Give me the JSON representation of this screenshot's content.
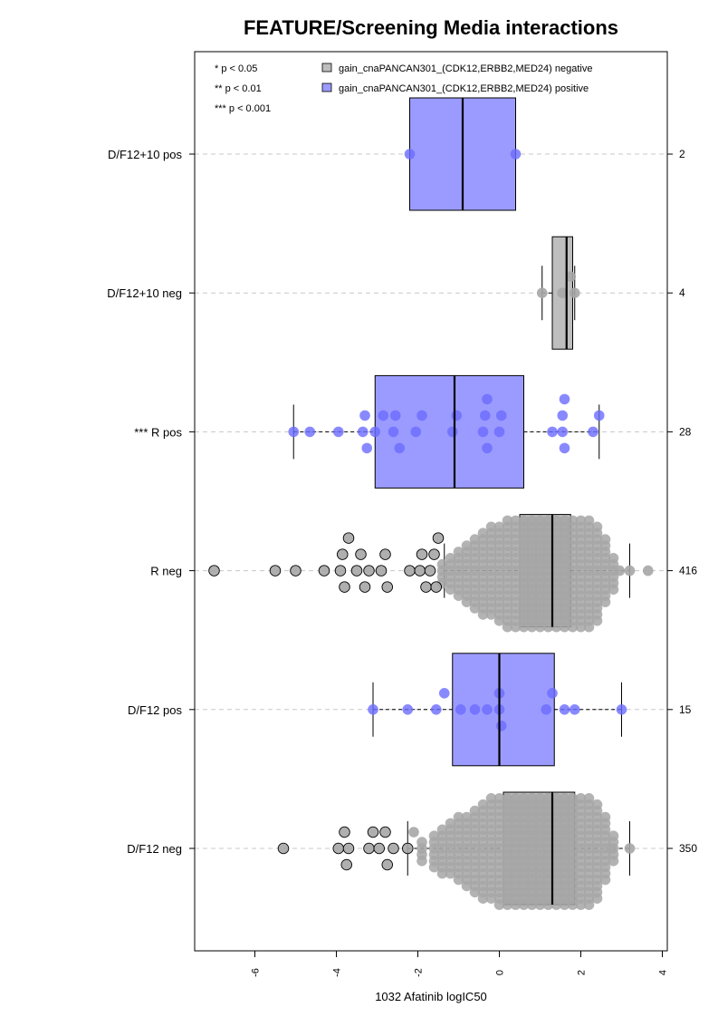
{
  "chart_data": {
    "type": "box",
    "orientation": "horizontal",
    "title": "FEATURE/Screening Media interactions",
    "xlabel": "1032 Afatinib logIC50",
    "xlim": [
      -7.2,
      4.1
    ],
    "xticks": [
      "-6",
      "-4",
      "-2",
      "0",
      "2",
      "4"
    ],
    "grid": "dashed horizontal lines at each group",
    "legend": {
      "placement": "top",
      "significance": [
        "* p < 0.05",
        "** p < 0.01",
        "*** p < 0.001"
      ],
      "entries": [
        {
          "label": "gain_cnaPANCAN301_(CDK12,ERBB2,MED24) negative",
          "color": "#bebebe"
        },
        {
          "label": "gain_cnaPANCAN301_(CDK12,ERBB2,MED24) positive",
          "color": "#9b9bff"
        }
      ]
    },
    "colors": {
      "negative_box": "#bebebe",
      "positive_box": "#9b9bff",
      "negative_point": "#a6a6a6",
      "positive_point": "#6b6bff"
    },
    "groups": [
      {
        "label": "D/F12+10 pos",
        "n": "2",
        "status": "positive",
        "box": {
          "q1": -2.2,
          "median": -0.9,
          "q3": 0.4
        },
        "whiskers": [
          -2.2,
          0.4
        ],
        "points": [
          -2.2,
          0.4
        ]
      },
      {
        "label": "D/F12+10 neg",
        "n": "4",
        "status": "negative",
        "box": {
          "q1": 1.3,
          "median": 1.65,
          "q3": 1.8
        },
        "whiskers": [
          1.05,
          1.85
        ],
        "points": [
          1.05,
          1.55,
          1.75,
          1.85
        ]
      },
      {
        "label": "*** R pos",
        "n": "28",
        "status": "positive",
        "box": {
          "q1": -3.05,
          "median": -1.1,
          "q3": 0.6
        },
        "whiskers": [
          -5.05,
          2.45
        ],
        "points": [
          -5.05,
          -4.65,
          -3.95,
          -3.35,
          -3.3,
          -3.25,
          -3.05,
          -2.85,
          -2.6,
          -2.55,
          -2.45,
          -2.05,
          -1.9,
          -1.15,
          -1.05,
          -0.4,
          -0.35,
          -0.3,
          -0.3,
          0.0,
          0.05,
          1.3,
          1.55,
          1.55,
          1.6,
          1.6,
          2.3,
          2.45
        ]
      },
      {
        "label": "R neg",
        "n": "416",
        "status": "negative",
        "box": {
          "q1": 0.5,
          "median": 1.3,
          "q3": 1.75
        },
        "whiskers": [
          -1.35,
          3.2
        ],
        "outliers": [
          -7.0,
          -5.5,
          -5.0,
          -4.3,
          -3.9,
          -3.85,
          -3.8,
          -3.7,
          -3.5,
          -3.4,
          -3.3,
          -3.2,
          -2.9,
          -2.8,
          -2.75,
          -2.2,
          -1.95,
          -1.9,
          -1.8,
          -1.7,
          -1.6,
          -1.55,
          -1.5,
          2.95,
          3.2,
          3.65
        ],
        "density": [
          {
            "x": -1.4,
            "n": 4
          },
          {
            "x": -1.2,
            "n": 6
          },
          {
            "x": -1.0,
            "n": 8
          },
          {
            "x": -0.8,
            "n": 10
          },
          {
            "x": -0.6,
            "n": 12
          },
          {
            "x": -0.4,
            "n": 14
          },
          {
            "x": -0.2,
            "n": 15
          },
          {
            "x": 0.0,
            "n": 16
          },
          {
            "x": 0.2,
            "n": 18
          },
          {
            "x": 0.4,
            "n": 18
          },
          {
            "x": 0.6,
            "n": 18
          },
          {
            "x": 0.8,
            "n": 18
          },
          {
            "x": 1.0,
            "n": 18
          },
          {
            "x": 1.2,
            "n": 18
          },
          {
            "x": 1.4,
            "n": 18
          },
          {
            "x": 1.6,
            "n": 18
          },
          {
            "x": 1.8,
            "n": 18
          },
          {
            "x": 2.0,
            "n": 18
          },
          {
            "x": 2.2,
            "n": 18
          },
          {
            "x": 2.4,
            "n": 16
          },
          {
            "x": 2.6,
            "n": 11
          },
          {
            "x": 2.8,
            "n": 6
          }
        ]
      },
      {
        "label": "D/F12 pos",
        "n": "15",
        "status": "positive",
        "box": {
          "q1": -1.15,
          "median": 0.0,
          "q3": 1.35
        },
        "whiskers": [
          -3.1,
          3.0
        ],
        "points": [
          -3.1,
          -2.25,
          -1.55,
          -1.35,
          -0.95,
          -0.6,
          -0.3,
          0.0,
          0.0,
          0.05,
          1.15,
          1.3,
          1.6,
          1.85,
          3.0
        ]
      },
      {
        "label": "D/F12 neg",
        "n": "350",
        "status": "negative",
        "box": {
          "q1": 0.1,
          "median": 1.3,
          "q3": 1.85
        },
        "whiskers": [
          -2.25,
          3.2
        ],
        "outliers": [
          -5.3,
          -3.95,
          -3.8,
          -3.75,
          -3.7,
          -3.2,
          -3.1,
          -2.95,
          -2.8,
          -2.75,
          -2.6,
          -2.25,
          -2.1,
          2.75,
          3.2
        ],
        "density": [
          {
            "x": -1.9,
            "n": 4
          },
          {
            "x": -1.6,
            "n": 6
          },
          {
            "x": -1.4,
            "n": 8
          },
          {
            "x": -1.2,
            "n": 9
          },
          {
            "x": -1.0,
            "n": 11
          },
          {
            "x": -0.8,
            "n": 12
          },
          {
            "x": -0.6,
            "n": 14
          },
          {
            "x": -0.4,
            "n": 16
          },
          {
            "x": -0.2,
            "n": 17
          },
          {
            "x": 0.0,
            "n": 18
          },
          {
            "x": 0.2,
            "n": 18
          },
          {
            "x": 0.4,
            "n": 18
          },
          {
            "x": 0.6,
            "n": 18
          },
          {
            "x": 0.8,
            "n": 18
          },
          {
            "x": 1.0,
            "n": 18
          },
          {
            "x": 1.2,
            "n": 18
          },
          {
            "x": 1.4,
            "n": 18
          },
          {
            "x": 1.6,
            "n": 18
          },
          {
            "x": 1.8,
            "n": 18
          },
          {
            "x": 2.0,
            "n": 18
          },
          {
            "x": 2.2,
            "n": 18
          },
          {
            "x": 2.4,
            "n": 16
          },
          {
            "x": 2.6,
            "n": 11
          },
          {
            "x": 2.8,
            "n": 5
          }
        ]
      }
    ]
  }
}
